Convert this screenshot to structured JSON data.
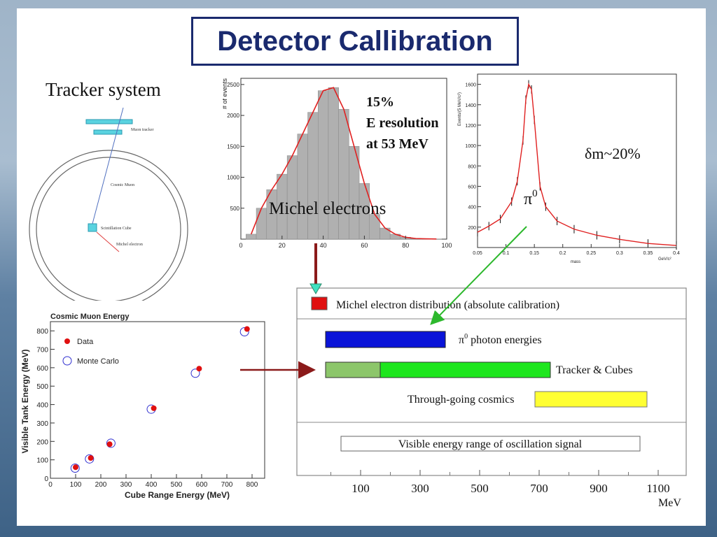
{
  "title": "Detector Callibration",
  "tracker": {
    "heading": "Tracker system",
    "muon_tracker": "Muon tracker",
    "cosmic_muon": "Cosmic Muon",
    "scint_cube": "Scintillation Cube",
    "michel_electron": "Michel electron"
  },
  "michel_hist": {
    "ylabel": "# of events",
    "caption": "Michel electrons",
    "annotation_line1": "15%",
    "annotation_line2": "E resolution",
    "annotation_line3": "at 53 MeV",
    "x_ticks": [
      "0",
      "20",
      "40",
      "60",
      "80",
      "100"
    ],
    "y_ticks": [
      "500",
      "1000",
      "1500",
      "2000",
      "2500"
    ]
  },
  "pi0_plot": {
    "ylabel": "Events/(5 MeV/c²)",
    "xlabel": "mass",
    "xunit": "GeV/c²",
    "annotation": "δm~20%",
    "pi_label": "π",
    "pi_sup": "0",
    "x_ticks": [
      "0.05",
      "0.1",
      "0.15",
      "0.2",
      "0.25",
      "0.3",
      "0.35",
      "0.4"
    ],
    "y_ticks": [
      "200",
      "400",
      "600",
      "800",
      "1000",
      "1200",
      "1400",
      "1600"
    ]
  },
  "energy_ranges": {
    "row1": "Michel electron distribution  (absolute calibration)",
    "row2_label": "π",
    "row2_sup": "0",
    "row2_rest": " photon energies",
    "row3": "Tracker & Cubes",
    "row4": "Through-going cosmics",
    "row5": "Visible energy range of oscillation signal",
    "axis_ticks": [
      "100",
      "300",
      "500",
      "700",
      "900",
      "1100"
    ],
    "axis_unit": "MeV",
    "colors": {
      "michel": "#e01010",
      "pi0": "#0a14d8",
      "tracker_light": "#8cc66a",
      "tracker": "#1ee61e",
      "cosmics": "#ffff33"
    }
  },
  "chart_data": [
    {
      "type": "scatter",
      "title": "Cosmic Muon Energy",
      "xlabel": "Cube Range Energy (MeV)",
      "ylabel": "Visible Tank Energy (MeV)",
      "xlim": [
        0,
        850
      ],
      "ylim": [
        0,
        850
      ],
      "x_ticks": [
        0,
        100,
        200,
        300,
        400,
        500,
        600,
        700,
        800
      ],
      "y_ticks": [
        0,
        100,
        200,
        300,
        400,
        500,
        600,
        700,
        800
      ],
      "legend": "top-left",
      "series": [
        {
          "name": "Data",
          "color": "#e01010",
          "marker": "filled-circle",
          "points": [
            [
              100,
              60
            ],
            [
              160,
              110
            ],
            [
              235,
              185
            ],
            [
              410,
              380
            ],
            [
              590,
              595
            ],
            [
              780,
              810
            ]
          ]
        },
        {
          "name": "Monte Carlo",
          "color": "#3030d0",
          "marker": "open-circle",
          "points": [
            [
              98,
              55
            ],
            [
              155,
              105
            ],
            [
              240,
              190
            ],
            [
              400,
              375
            ],
            [
              575,
              570
            ],
            [
              770,
              795
            ]
          ]
        }
      ]
    },
    {
      "type": "bar",
      "subtype": "histogram",
      "ylabel": "# of events",
      "xlim": [
        0,
        100
      ],
      "ylim": [
        0,
        2600
      ],
      "x": [
        5,
        10,
        15,
        20,
        25,
        30,
        35,
        40,
        45,
        50,
        55,
        60,
        65,
        70,
        75,
        80,
        85,
        90,
        95
      ],
      "values": [
        80,
        500,
        800,
        1050,
        1350,
        1700,
        2050,
        2400,
        2450,
        2100,
        1500,
        900,
        400,
        180,
        80,
        30,
        10,
        5,
        2
      ]
    },
    {
      "type": "line",
      "xlabel": "mass",
      "ylabel": "Events/(5 MeV/c²)",
      "xlim": [
        0.05,
        0.4
      ],
      "ylim": [
        0,
        1700
      ],
      "x": [
        0.05,
        0.07,
        0.09,
        0.11,
        0.12,
        0.13,
        0.135,
        0.14,
        0.145,
        0.15,
        0.16,
        0.17,
        0.19,
        0.22,
        0.26,
        0.3,
        0.35,
        0.4
      ],
      "values": [
        150,
        210,
        280,
        450,
        650,
        1050,
        1450,
        1600,
        1550,
        1250,
        600,
        400,
        260,
        180,
        120,
        80,
        40,
        20
      ]
    }
  ]
}
